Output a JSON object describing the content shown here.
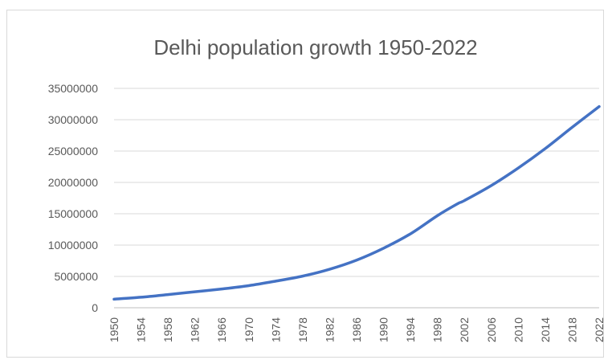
{
  "chart_data": {
    "type": "line",
    "title": "Delhi population growth 1950-2022",
    "xlabel": "",
    "ylabel": "",
    "ylim": [
      0,
      35000000
    ],
    "yticks": [
      0,
      5000000,
      10000000,
      15000000,
      20000000,
      25000000,
      30000000,
      35000000
    ],
    "ytick_labels": [
      "0",
      "5000000",
      "10000000",
      "15000000",
      "20000000",
      "25000000",
      "30000000",
      "35000000"
    ],
    "xticks": [
      "1950",
      "1954",
      "1958",
      "1962",
      "1966",
      "1970",
      "1974",
      "1978",
      "1982",
      "1986",
      "1990",
      "1994",
      "1998",
      "2002",
      "2006",
      "2010",
      "2014",
      "2018",
      "2022"
    ],
    "grid": true,
    "legend": "none",
    "x": [
      1950,
      1954,
      1958,
      1962,
      1966,
      1970,
      1974,
      1978,
      1982,
      1986,
      1990,
      1994,
      1998,
      2001,
      2002,
      2006,
      2010,
      2014,
      2018,
      2022
    ],
    "series": [
      {
        "color": "#4472c4",
        "values": [
          1370000,
          1680000,
          2100000,
          2550000,
          3000000,
          3530000,
          4250000,
          5050000,
          6150000,
          7600000,
          9500000,
          11800000,
          14700000,
          16600000,
          17100000,
          19500000,
          22300000,
          25400000,
          28800000,
          32100000
        ]
      }
    ]
  }
}
